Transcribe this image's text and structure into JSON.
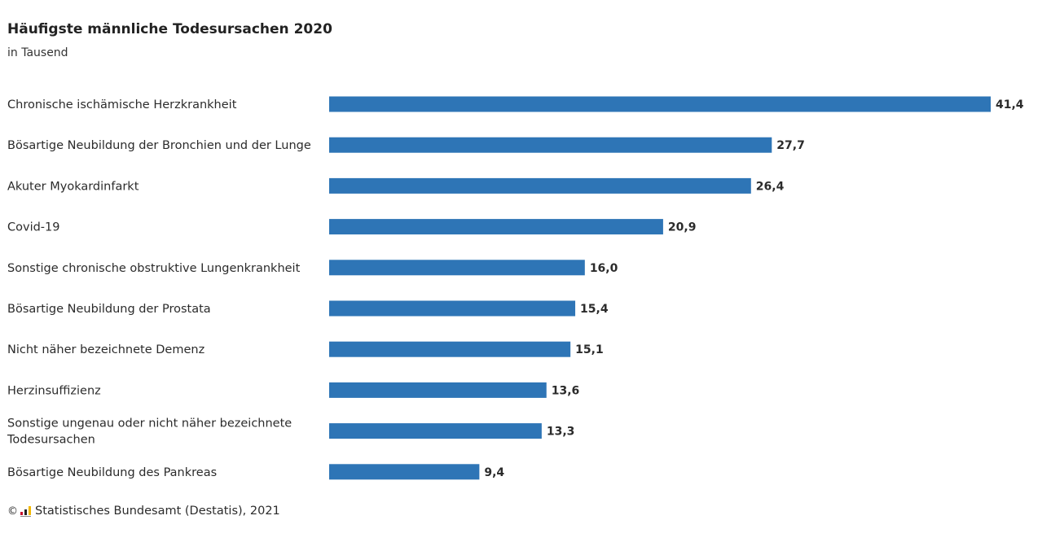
{
  "title": "Häufigste männliche Todesursachen 2020",
  "subtitle": "in Tausend",
  "source": "Statistisches Bundesamt (Destatis), 2021",
  "copyright_symbol": "©",
  "colors": {
    "bar": "#2e75b6",
    "text": "#2b2b2b"
  },
  "chart_data": {
    "type": "bar",
    "orientation": "horizontal",
    "categories": [
      "Chronische ischämische Herzkrankheit",
      "Bösartige Neubildung der Bronchien und der Lunge",
      "Akuter Myokardinfarkt",
      "Covid-19",
      "Sonstige chronische obstruktive Lungenkrankheit",
      "Bösartige Neubildung der Prostata",
      "Nicht näher bezeichnete Demenz",
      "Herzinsuffizienz",
      "Sonstige ungenau oder nicht näher bezeichnete Todesursachen",
      "Bösartige Neubildung des Pankreas"
    ],
    "values": [
      41.4,
      27.7,
      26.4,
      20.9,
      16.0,
      15.4,
      15.1,
      13.6,
      13.3,
      9.4
    ],
    "value_labels": [
      "41,4",
      "27,7",
      "26,4",
      "20,9",
      "16,0",
      "15,4",
      "15,1",
      "13,6",
      "13,3",
      "9,4"
    ],
    "title": "Häufigste männliche Todesursachen 2020",
    "subtitle": "in Tausend",
    "xlabel": "",
    "ylabel": "",
    "xlim": [
      0,
      41.4
    ],
    "grid": false,
    "legend": "none"
  }
}
